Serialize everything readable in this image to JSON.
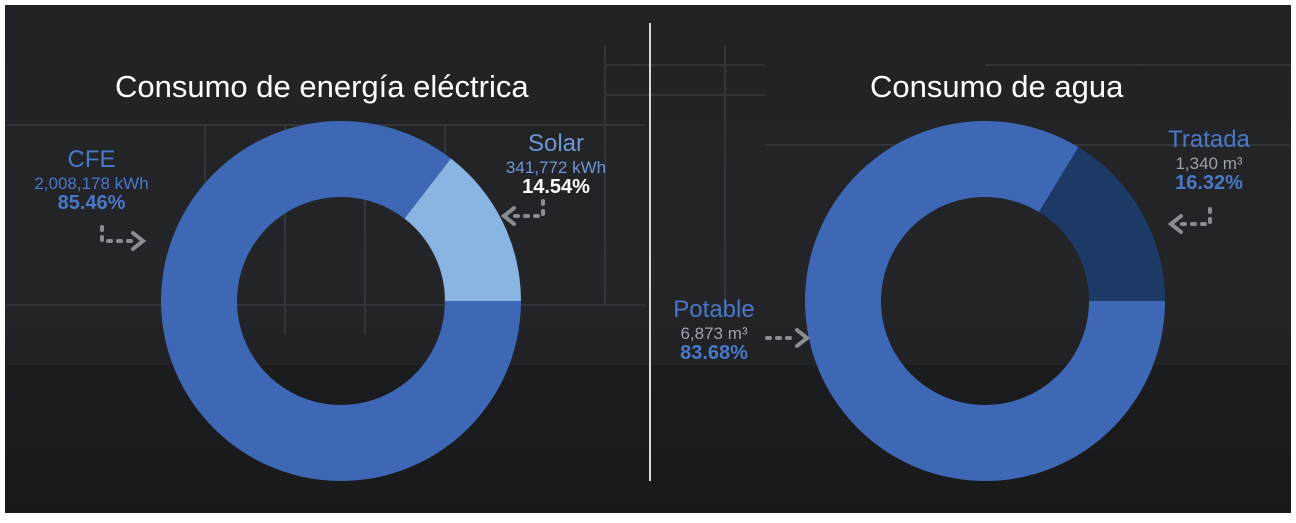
{
  "colors": {
    "primary_blue": "#3e68b6",
    "light_blue": "#8ab4e2",
    "dark_blue": "#1d3a66",
    "label_blue": "#4a78c8",
    "arrow_gray": "#8a8d93"
  },
  "chart_data": [
    {
      "type": "pie",
      "title": "Consumo de energía eléctrica",
      "categories": [
        "CFE",
        "Solar"
      ],
      "values": [
        2008178,
        341772
      ],
      "value_labels": [
        "2,008,178 kWh",
        "341,772 kWh"
      ],
      "percent_labels": [
        "85.46%",
        "14.54%"
      ],
      "percents": [
        85.46,
        14.54
      ],
      "colors": [
        "#3e68b6",
        "#8ab4e2"
      ],
      "donut": true
    },
    {
      "type": "pie",
      "title": "Consumo de agua",
      "categories": [
        "Potable",
        "Tratada"
      ],
      "values": [
        6873,
        1340
      ],
      "value_labels": [
        "6,873 m³",
        "1,340 m³"
      ],
      "percent_labels": [
        "83.68%",
        "16.32%"
      ],
      "percents": [
        83.68,
        16.32
      ],
      "colors": [
        "#3e68b6",
        "#1d3a66"
      ],
      "donut": true
    }
  ]
}
